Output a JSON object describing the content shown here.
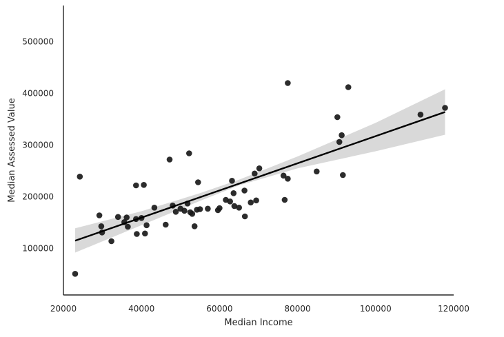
{
  "chart_data": {
    "type": "scatter",
    "title": "",
    "xlabel": "Median Income",
    "ylabel": "Median Assessed Value",
    "xlim": [
      20000,
      120000
    ],
    "ylim": [
      10000,
      570000
    ],
    "xticks": [
      20000,
      40000,
      60000,
      80000,
      100000,
      120000
    ],
    "yticks": [
      100000,
      200000,
      300000,
      400000,
      500000
    ],
    "xtick_labels": [
      "20000",
      "40000",
      "60000",
      "80000",
      "100000",
      "120000"
    ],
    "ytick_labels": [
      "100000",
      "200000",
      "300000",
      "400000",
      "500000"
    ],
    "grid": false,
    "points": [
      {
        "x": 23000,
        "y": 51000
      },
      {
        "x": 24200,
        "y": 239000
      },
      {
        "x": 29200,
        "y": 164000
      },
      {
        "x": 29700,
        "y": 143000
      },
      {
        "x": 29900,
        "y": 131000
      },
      {
        "x": 32300,
        "y": 114000
      },
      {
        "x": 34000,
        "y": 161000
      },
      {
        "x": 35600,
        "y": 151000
      },
      {
        "x": 36200,
        "y": 160000
      },
      {
        "x": 36500,
        "y": 142000
      },
      {
        "x": 38600,
        "y": 222000
      },
      {
        "x": 38600,
        "y": 157000
      },
      {
        "x": 38800,
        "y": 128000
      },
      {
        "x": 40000,
        "y": 159000
      },
      {
        "x": 40600,
        "y": 223000
      },
      {
        "x": 40900,
        "y": 129000
      },
      {
        "x": 41300,
        "y": 145000
      },
      {
        "x": 43300,
        "y": 179000
      },
      {
        "x": 46200,
        "y": 146000
      },
      {
        "x": 47200,
        "y": 272000
      },
      {
        "x": 48000,
        "y": 183000
      },
      {
        "x": 48800,
        "y": 171000
      },
      {
        "x": 50000,
        "y": 177000
      },
      {
        "x": 51000,
        "y": 173000
      },
      {
        "x": 51800,
        "y": 187000
      },
      {
        "x": 52200,
        "y": 284000
      },
      {
        "x": 52500,
        "y": 170000
      },
      {
        "x": 53000,
        "y": 167000
      },
      {
        "x": 53600,
        "y": 143000
      },
      {
        "x": 54200,
        "y": 175000
      },
      {
        "x": 54500,
        "y": 228000
      },
      {
        "x": 55000,
        "y": 176000
      },
      {
        "x": 57000,
        "y": 177000
      },
      {
        "x": 59600,
        "y": 174000
      },
      {
        "x": 60000,
        "y": 178000
      },
      {
        "x": 61600,
        "y": 194000
      },
      {
        "x": 62700,
        "y": 191000
      },
      {
        "x": 63200,
        "y": 231000
      },
      {
        "x": 63600,
        "y": 207000
      },
      {
        "x": 63800,
        "y": 182000
      },
      {
        "x": 65000,
        "y": 179000
      },
      {
        "x": 66400,
        "y": 212000
      },
      {
        "x": 66500,
        "y": 162000
      },
      {
        "x": 68000,
        "y": 189000
      },
      {
        "x": 69000,
        "y": 245000
      },
      {
        "x": 69400,
        "y": 193000
      },
      {
        "x": 70200,
        "y": 255000
      },
      {
        "x": 76400,
        "y": 241000
      },
      {
        "x": 76700,
        "y": 194000
      },
      {
        "x": 77500,
        "y": 235000
      },
      {
        "x": 77500,
        "y": 420000
      },
      {
        "x": 84900,
        "y": 249000
      },
      {
        "x": 90200,
        "y": 354000
      },
      {
        "x": 90700,
        "y": 306000
      },
      {
        "x": 91300,
        "y": 319000
      },
      {
        "x": 91600,
        "y": 242000
      },
      {
        "x": 93000,
        "y": 412000
      },
      {
        "x": 111500,
        "y": 359000
      },
      {
        "x": 117800,
        "y": 372000
      }
    ],
    "regression": {
      "x": [
        23000,
        117800
      ],
      "y": [
        115000,
        364000
      ],
      "ci_lower": [
        {
          "x": 23000,
          "y": 92000
        },
        {
          "x": 40000,
          "y": 145000
        },
        {
          "x": 55000,
          "y": 192000
        },
        {
          "x": 65000,
          "y": 222000
        },
        {
          "x": 80000,
          "y": 255000
        },
        {
          "x": 100000,
          "y": 288000
        },
        {
          "x": 117800,
          "y": 320000
        }
      ],
      "ci_upper": [
        {
          "x": 23000,
          "y": 139000
        },
        {
          "x": 40000,
          "y": 172000
        },
        {
          "x": 55000,
          "y": 207000
        },
        {
          "x": 65000,
          "y": 233000
        },
        {
          "x": 80000,
          "y": 278000
        },
        {
          "x": 100000,
          "y": 343000
        },
        {
          "x": 117800,
          "y": 408000
        }
      ]
    },
    "colors": {
      "points": "#1a1a1a",
      "line": "#000000",
      "band": "#d9d9d9",
      "axis": "#262626"
    }
  }
}
